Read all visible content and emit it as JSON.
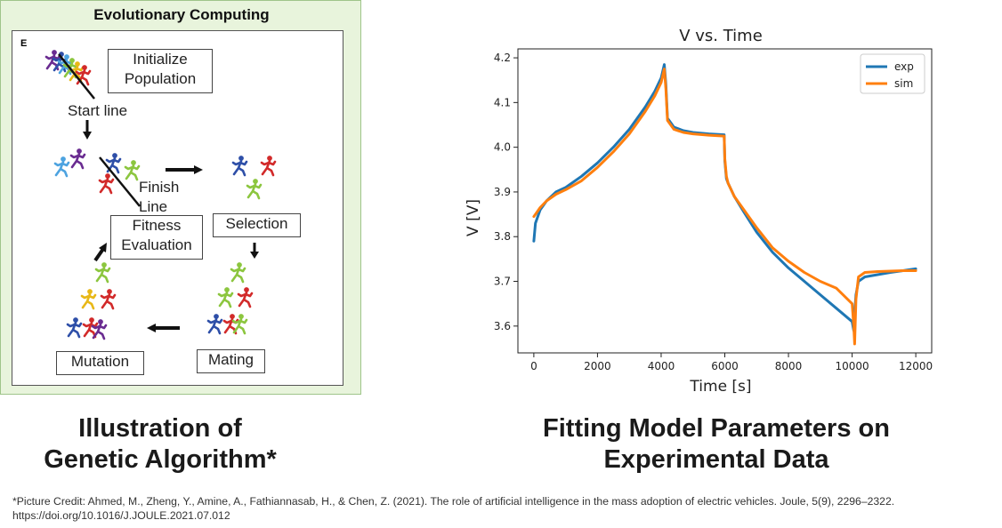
{
  "left_panel": {
    "title": "Evolutionary Computing",
    "panel_label": "E",
    "initialize_population": "Initialize\nPopulation",
    "start_line": "Start line",
    "finish_line": "Finish\nLine",
    "fitness_evaluation": "Fitness\nEvaluation",
    "selection": "Selection",
    "mating": "Mating",
    "mutation": "Mutation"
  },
  "captions": {
    "left": "Illustration of\nGenetic Algorithm*",
    "right": "Fitting Model Parameters on\nExperimental Data"
  },
  "footnote": "*Picture Credit: Ahmed, M., Zheng, Y., Amine, A., Fathiannasab, H., & Chen, Z. (2021). The role of artificial intelligence in the mass adoption of electric vehicles. Joule, 5(9), 2296–2322. https://doi.org/10.1016/J.JOULE.2021.07.012",
  "colors": {
    "exp": "#1f77b4",
    "sim": "#ff7f0e",
    "runner_purple": "#6a2c91",
    "runner_blue": "#2e4fa8",
    "runner_red": "#d22a2a",
    "runner_green": "#8cc63f",
    "runner_lightblue": "#4da3e0",
    "runner_yellow": "#e8b818"
  },
  "chart_data": {
    "type": "line",
    "title": "V vs. Time",
    "xlabel": "Time [s]",
    "ylabel": "V [V]",
    "xlim": [
      -500,
      12500
    ],
    "ylim": [
      3.54,
      4.22
    ],
    "xticks": [
      0,
      2000,
      4000,
      6000,
      8000,
      10000,
      12000
    ],
    "yticks": [
      3.6,
      3.7,
      3.8,
      3.9,
      4.0,
      4.1,
      4.2
    ],
    "ytick_labels": [
      "3.6",
      "3.7",
      "3.8",
      "3.9",
      "4.0",
      "4.1",
      "4.2"
    ],
    "legend_position": "top-right",
    "series": [
      {
        "name": "exp",
        "x": [
          0,
          50,
          200,
          400,
          700,
          1000,
          1500,
          2000,
          2500,
          3000,
          3500,
          3800,
          4000,
          4100,
          4150,
          4200,
          4400,
          4700,
          5000,
          5500,
          5980,
          6000,
          6050,
          6100,
          6300,
          6600,
          7000,
          7500,
          8000,
          8500,
          9000,
          9500,
          10000,
          10050,
          10080,
          10120,
          10200,
          10400,
          10800,
          11200,
          11600,
          12000
        ],
        "y": [
          3.79,
          3.83,
          3.86,
          3.88,
          3.9,
          3.91,
          3.935,
          3.965,
          4.0,
          4.04,
          4.09,
          4.125,
          4.155,
          4.185,
          4.14,
          4.065,
          4.045,
          4.037,
          4.033,
          4.03,
          4.028,
          3.97,
          3.93,
          3.92,
          3.89,
          3.855,
          3.81,
          3.765,
          3.73,
          3.7,
          3.67,
          3.64,
          3.61,
          3.59,
          3.63,
          3.67,
          3.7,
          3.71,
          3.715,
          3.72,
          3.724,
          3.728
        ]
      },
      {
        "name": "sim",
        "x": [
          0,
          50,
          200,
          400,
          700,
          1000,
          1500,
          2000,
          2500,
          3000,
          3500,
          3800,
          4000,
          4100,
          4150,
          4200,
          4400,
          4700,
          5000,
          5500,
          5980,
          6000,
          6050,
          6100,
          6300,
          6600,
          7000,
          7500,
          8000,
          8500,
          9000,
          9500,
          10000,
          10050,
          10080,
          10120,
          10200,
          10400,
          10800,
          11200,
          11600,
          12000
        ],
        "y": [
          3.845,
          3.85,
          3.865,
          3.88,
          3.895,
          3.905,
          3.925,
          3.955,
          3.99,
          4.03,
          4.08,
          4.115,
          4.145,
          4.175,
          4.13,
          4.06,
          4.04,
          4.033,
          4.03,
          4.027,
          4.025,
          3.975,
          3.935,
          3.92,
          3.89,
          3.86,
          3.82,
          3.775,
          3.745,
          3.72,
          3.7,
          3.685,
          3.65,
          3.6,
          3.56,
          3.66,
          3.71,
          3.72,
          3.722,
          3.723,
          3.724,
          3.724
        ]
      }
    ]
  }
}
